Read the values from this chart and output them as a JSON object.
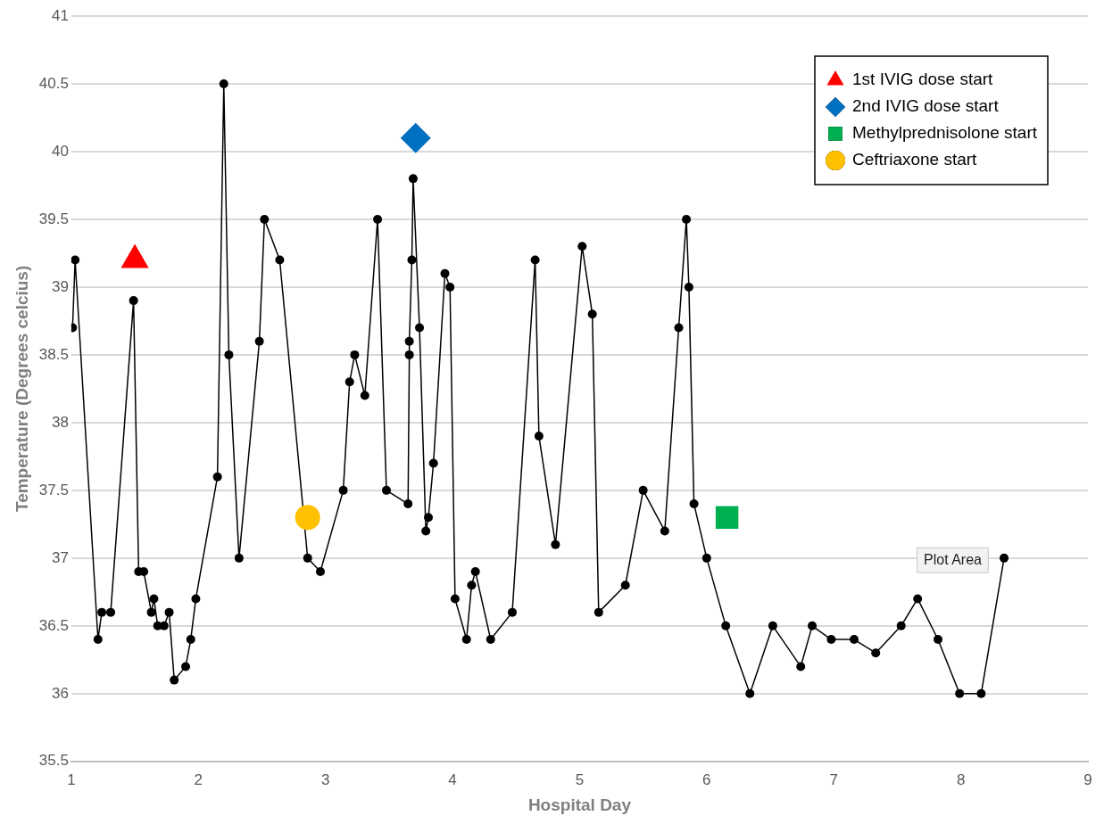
{
  "chart_data": {
    "type": "scatter",
    "xlabel": "Hospital Day",
    "ylabel": "Temperature (Degrees celcius)",
    "xlim": [
      1,
      9
    ],
    "xticks": [
      1,
      2,
      3,
      4,
      5,
      6,
      7,
      8,
      9
    ],
    "ylim": [
      35.5,
      41
    ],
    "yticks": [
      35.5,
      36,
      36.5,
      37,
      37.5,
      38,
      38.5,
      39,
      39.5,
      40,
      40.5,
      41
    ],
    "grid": "y",
    "legend": "top right",
    "series": [
      {
        "type": "line",
        "marker": "circle",
        "color": "#000000",
        "x": [
          1.01,
          1.03,
          1.21,
          1.24,
          1.31,
          1.49,
          1.53,
          1.57,
          1.63,
          1.65,
          1.68,
          1.73,
          1.77,
          1.81,
          1.9,
          1.94,
          1.98,
          2.15,
          2.2,
          2.24,
          2.32,
          2.48,
          2.52,
          2.64,
          2.86,
          2.96,
          3.14,
          3.19,
          3.23,
          3.31,
          3.41,
          3.48,
          3.65,
          3.66,
          3.66,
          3.68,
          3.69,
          3.74,
          3.79,
          3.81,
          3.85,
          3.94,
          3.98,
          4.02,
          4.11,
          4.15,
          4.18,
          4.3,
          4.47,
          4.65,
          4.68,
          4.81,
          5.02,
          5.1,
          5.15,
          5.36,
          5.5,
          5.67,
          5.78,
          5.84,
          5.86,
          5.9,
          6.0,
          6.15,
          6.34,
          6.52,
          6.74,
          6.83,
          6.98,
          7.16,
          7.33,
          7.53,
          7.66,
          7.82,
          7.99,
          8.16,
          8.34
        ],
        "values": [
          38.7,
          39.2,
          36.4,
          36.6,
          36.6,
          38.9,
          36.9,
          36.9,
          36.6,
          36.7,
          36.5,
          36.5,
          36.6,
          36.1,
          36.2,
          36.4,
          36.7,
          37.6,
          40.5,
          38.5,
          37.0,
          38.6,
          39.5,
          39.2,
          37.0,
          36.9,
          37.5,
          38.3,
          38.5,
          38.2,
          39.5,
          37.5,
          37.4,
          38.5,
          38.6,
          39.2,
          39.8,
          38.7,
          37.2,
          37.3,
          37.7,
          39.1,
          39.0,
          36.7,
          36.4,
          36.8,
          36.9,
          36.4,
          36.6,
          39.2,
          37.9,
          37.1,
          39.3,
          38.8,
          36.6,
          36.8,
          37.5,
          37.2,
          38.7,
          39.5,
          39.0,
          37.4,
          37.0,
          36.5,
          36.0,
          36.5,
          36.2,
          36.5,
          36.4,
          36.4,
          36.3,
          36.5,
          36.7,
          36.4,
          36.0,
          36.0,
          37.0
        ]
      },
      {
        "name": "1st IVIG dose start",
        "marker": "triangle",
        "color": "#ff0000",
        "x": [
          1.5
        ],
        "values": [
          39.2
        ]
      },
      {
        "name": "2nd IVIG dose start",
        "marker": "diamond",
        "color": "#0070c0",
        "x": [
          3.71
        ],
        "values": [
          40.1
        ]
      },
      {
        "name": "Methylprednisolone start",
        "marker": "square",
        "color": "#00b050",
        "x": [
          6.16
        ],
        "values": [
          37.3
        ]
      },
      {
        "name": "Ceftriaxone start",
        "marker": "circle",
        "color": "#ffc000",
        "x": [
          2.86
        ],
        "values": [
          37.3
        ]
      }
    ],
    "annotations": [
      "Plot Area"
    ]
  }
}
